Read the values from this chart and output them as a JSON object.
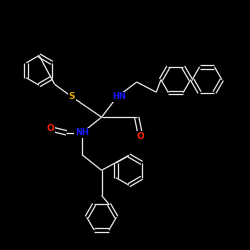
{
  "background_color": "#000000",
  "atom_colors": {
    "N": "#1a1aff",
    "O": "#ff2000",
    "S": "#ddaa00"
  },
  "bond_color": "#e8e8e8",
  "bond_width": 0.9,
  "figsize": [
    2.5,
    2.5
  ],
  "dpi": 100,
  "xlim": [
    -1.6,
    1.6
  ],
  "ylim": [
    -1.6,
    1.6
  ]
}
